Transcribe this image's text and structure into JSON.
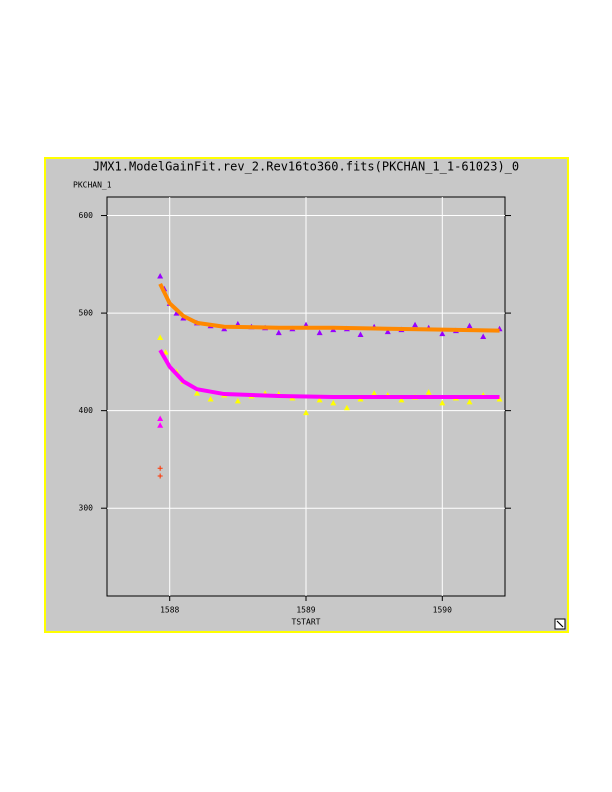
{
  "chart_data": {
    "type": "scatter",
    "title": "JMX1.ModelGainFit.rev_2.Rev16to360.fits(PKCHAN_1_1-61023)_0",
    "y_label": "PKCHAN_1",
    "x_label": "TSTART",
    "xlim": [
      1587.54,
      1590.46
    ],
    "xticks": [
      1588,
      1589,
      1590
    ],
    "ylim": [
      210,
      619
    ],
    "yticks": [
      300,
      400,
      500,
      600
    ],
    "grid": true,
    "series": [
      {
        "color": "#9900ff",
        "marker": "triangle",
        "x": [
          1587.93,
          1587.96,
          1588.0,
          1588.05,
          1588.1,
          1588.2,
          1588.3,
          1588.4,
          1588.5,
          1588.6,
          1588.7,
          1588.8,
          1588.9,
          1589.0,
          1589.1,
          1589.2,
          1589.3,
          1589.4,
          1589.5,
          1589.6,
          1589.7,
          1589.8,
          1589.9,
          1590.0,
          1590.1,
          1590.2,
          1590.3,
          1590.42
        ],
        "values": [
          538,
          525,
          510,
          500,
          495,
          490,
          487,
          484,
          489,
          486,
          485,
          480,
          484,
          488,
          480,
          483,
          484,
          478,
          486,
          481,
          483,
          488,
          485,
          479,
          482,
          487,
          476,
          484
        ]
      },
      {
        "color": "#ff8800",
        "marker": "line",
        "x": [
          1587.93,
          1588.0,
          1588.1,
          1588.2,
          1588.4,
          1588.8,
          1589.2,
          1589.6,
          1590.0,
          1590.42
        ],
        "values": [
          530,
          510,
          497,
          490,
          486,
          485,
          485,
          484,
          483,
          482
        ]
      },
      {
        "color": "#ffff00",
        "marker": "triangle",
        "x": [
          1587.93,
          1587.97,
          1588.05,
          1588.1,
          1588.2,
          1588.3,
          1588.4,
          1588.5,
          1588.6,
          1588.7,
          1588.8,
          1588.9,
          1589.0,
          1589.1,
          1589.2,
          1589.3,
          1589.4,
          1589.5,
          1589.6,
          1589.7,
          1589.8,
          1589.9,
          1590.0,
          1590.1,
          1590.2,
          1590.3,
          1590.42
        ],
        "values": [
          475,
          460,
          440,
          430,
          418,
          412,
          416,
          410,
          415,
          418,
          417,
          413,
          398,
          411,
          408,
          403,
          412,
          418,
          416,
          411,
          414,
          419,
          408,
          413,
          409,
          416,
          412
        ]
      },
      {
        "color": "#ff00ff",
        "marker": "line",
        "x": [
          1587.93,
          1588.0,
          1588.1,
          1588.2,
          1588.4,
          1588.8,
          1589.2,
          1589.6,
          1590.0,
          1590.42
        ],
        "values": [
          462,
          445,
          430,
          422,
          417,
          415,
          414,
          414,
          414,
          414
        ]
      },
      {
        "color": "#ff00ff",
        "marker": "triangle",
        "x": [
          1587.93,
          1587.93
        ],
        "values": [
          392,
          385
        ]
      },
      {
        "color": "#ff3300",
        "marker": "plus",
        "x": [
          1587.93,
          1587.93
        ],
        "values": [
          341,
          333
        ]
      }
    ]
  }
}
